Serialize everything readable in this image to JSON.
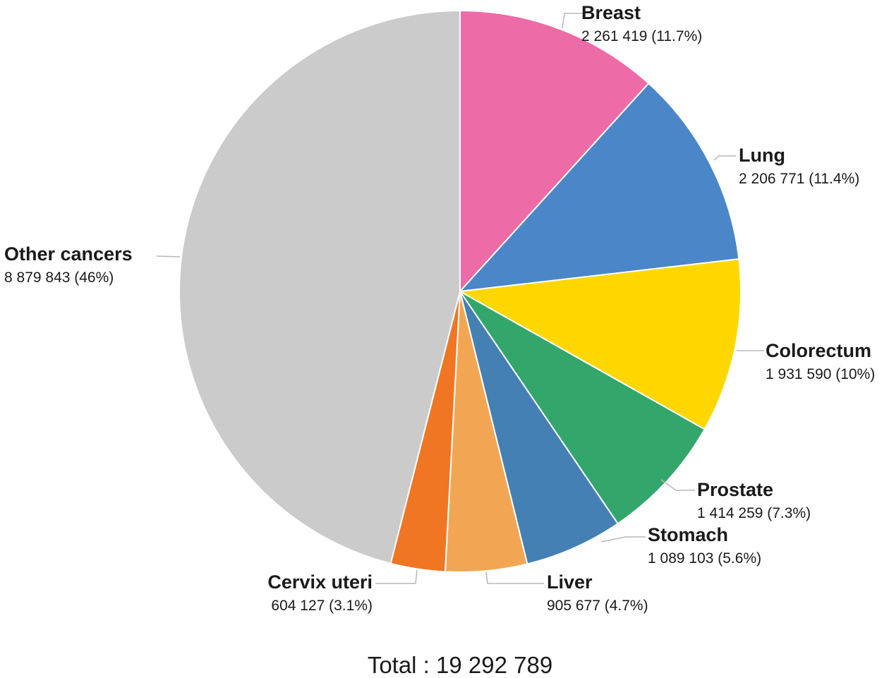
{
  "chart_data": {
    "type": "pie",
    "title": "",
    "start_angle_deg": 0,
    "direction": "clockwise",
    "legend": "none",
    "slices": [
      {
        "label": "Breast",
        "value": 2261419,
        "value_text": "2 261 419 (11.7%)",
        "percent": 11.7,
        "color": "#ED6BA7"
      },
      {
        "label": "Lung",
        "value": 2206771,
        "value_text": "2 206 771 (11.4%)",
        "percent": 11.4,
        "color": "#4A86C8"
      },
      {
        "label": "Colorectum",
        "value": 1931590,
        "value_text": "1 931 590 (10%)",
        "percent": 10,
        "color": "#FFD700"
      },
      {
        "label": "Prostate",
        "value": 1414259,
        "value_text": "1 414 259 (7.3%)",
        "percent": 7.3,
        "color": "#33A66B"
      },
      {
        "label": "Stomach",
        "value": 1089103,
        "value_text": "1 089 103 (5.6%)",
        "percent": 5.6,
        "color": "#4480B4"
      },
      {
        "label": "Liver",
        "value": 905677,
        "value_text": "905 677 (4.7%)",
        "percent": 4.7,
        "color": "#F2A654"
      },
      {
        "label": "Cervix uteri",
        "value": 604127,
        "value_text": "604 127 (3.1%)",
        "percent": 3.1,
        "color": "#F07623"
      },
      {
        "label": "Other cancers",
        "value": 8879843,
        "value_text": "8 879 843 (46%)",
        "percent": 46,
        "color": "#CBCBCB"
      }
    ],
    "total_text": "Total : 19 292 789"
  }
}
